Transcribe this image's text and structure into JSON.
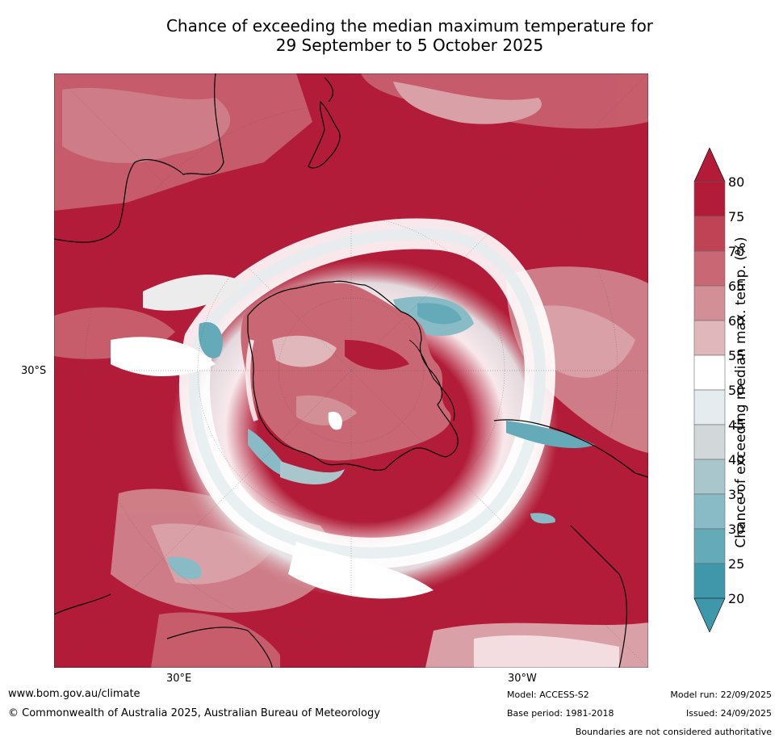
{
  "title": {
    "line1": "Chance of exceeding the median maximum temperature for",
    "line2": "29 September to 5 October 2025"
  },
  "map": {
    "lat_label": "30°S",
    "lon_labels": [
      "30°E",
      "30°W"
    ],
    "colors": {
      "deep_red": "#b21c38",
      "teal": "#3f98aa"
    }
  },
  "colorbar": {
    "label": "Chance of exceeding median max. temp. (%)",
    "ticks": [
      "80",
      "75",
      "70",
      "65",
      "60",
      "55",
      "50",
      "45",
      "40",
      "35",
      "30",
      "25",
      "20"
    ],
    "colors": [
      "#b21c38",
      "#bf4355",
      "#ca6774",
      "#d38f96",
      "#e0b8bb",
      "#ececec",
      "#ffffff",
      "#e4ecef",
      "#d2d8da",
      "#a9c6cd",
      "#89bbc6",
      "#65aab8",
      "#3f98aa"
    ]
  },
  "footer": {
    "website": "www.bom.gov.au/climate",
    "copyright": "© Commonwealth of Australia 2025, Australian Bureau of Meteorology",
    "model": "Model: ACCESS-S2",
    "base_period": "Base period: 1981-2018",
    "model_run": "Model run: 22/09/2025",
    "issued": "Issued: 24/09/2025",
    "disclaimer": "Boundaries are not considered authoritative"
  }
}
